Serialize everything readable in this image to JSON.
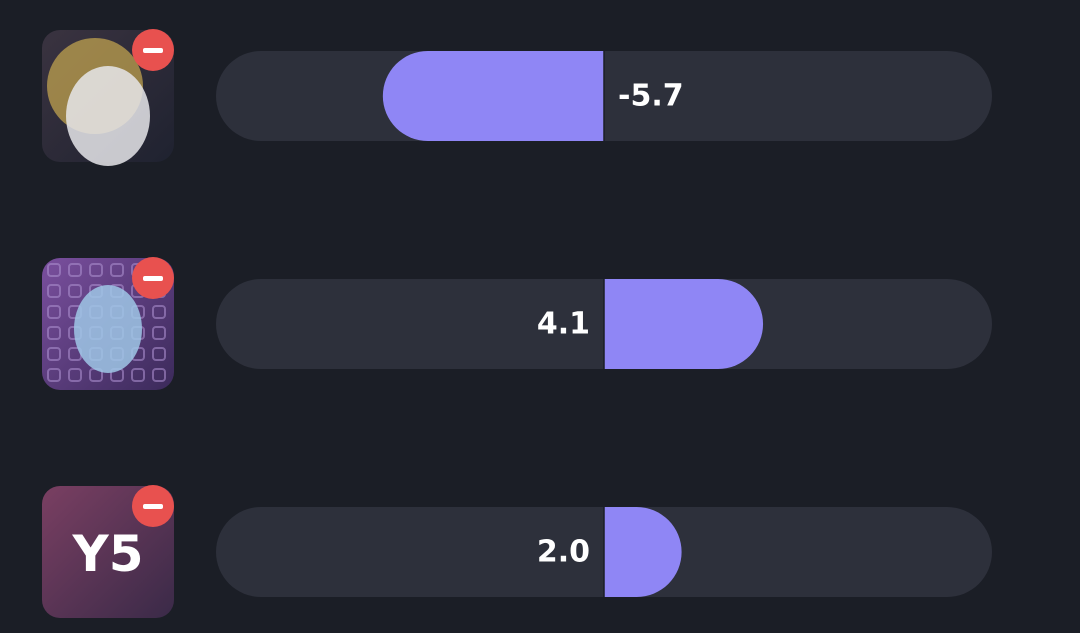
{
  "sliders": {
    "xlim": [
      -10,
      10
    ],
    "color": "#8f86f5",
    "items": [
      {
        "value": -5.7,
        "value_label": "-5.7"
      },
      {
        "value": 4.1,
        "value_label": "4.1"
      },
      {
        "value": 2.0,
        "value_label": "2.0",
        "avatar_text": "Y5"
      }
    ]
  }
}
